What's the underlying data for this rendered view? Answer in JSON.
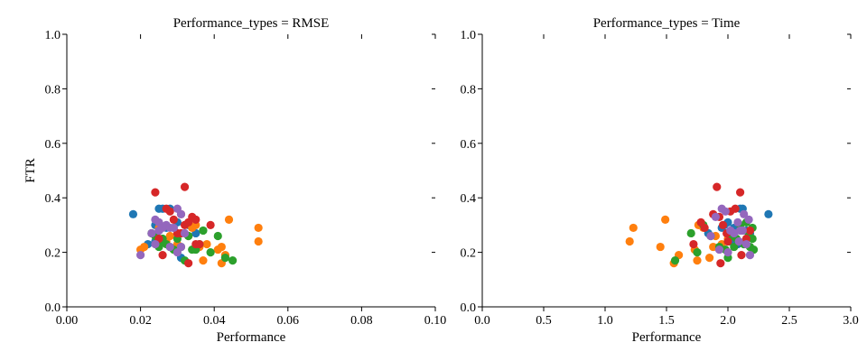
{
  "chart_data": [
    {
      "type": "scatter",
      "title": "Performance_types = RMSE",
      "xlabel": "Performance",
      "ylabel": "FTR",
      "xlim": [
        0.0,
        0.1
      ],
      "ylim": [
        0.0,
        1.0
      ],
      "xticks": [
        "0.00",
        "0.02",
        "0.04",
        "0.06",
        "0.08",
        "0.10"
      ],
      "yticks": [
        "0.0",
        "0.2",
        "0.4",
        "0.6",
        "0.8",
        "1.0"
      ],
      "grid": false,
      "series": [
        {
          "color": "#1f77b4",
          "points": [
            [
              0.018,
              0.34
            ],
            [
              0.022,
              0.23
            ],
            [
              0.024,
              0.3
            ],
            [
              0.025,
              0.36
            ],
            [
              0.026,
              0.36
            ],
            [
              0.027,
              0.29
            ],
            [
              0.028,
              0.36
            ],
            [
              0.029,
              0.29
            ],
            [
              0.03,
              0.31
            ],
            [
              0.031,
              0.18
            ],
            [
              0.033,
              0.3
            ],
            [
              0.035,
              0.27
            ],
            [
              0.025,
              0.28
            ],
            [
              0.024,
              0.24
            ]
          ]
        },
        {
          "color": "#ff7f0e",
          "points": [
            [
              0.02,
              0.21
            ],
            [
              0.021,
              0.22
            ],
            [
              0.025,
              0.29
            ],
            [
              0.027,
              0.24
            ],
            [
              0.03,
              0.23
            ],
            [
              0.033,
              0.26
            ],
            [
              0.034,
              0.29
            ],
            [
              0.035,
              0.3
            ],
            [
              0.036,
              0.22
            ],
            [
              0.037,
              0.17
            ],
            [
              0.038,
              0.23
            ],
            [
              0.041,
              0.21
            ],
            [
              0.042,
              0.16
            ],
            [
              0.042,
              0.22
            ],
            [
              0.043,
              0.19
            ],
            [
              0.044,
              0.32
            ],
            [
              0.052,
              0.29
            ],
            [
              0.052,
              0.24
            ],
            [
              0.028,
              0.26
            ]
          ]
        },
        {
          "color": "#2ca02c",
          "points": [
            [
              0.023,
              0.27
            ],
            [
              0.024,
              0.26
            ],
            [
              0.025,
              0.22
            ],
            [
              0.026,
              0.25
            ],
            [
              0.027,
              0.23
            ],
            [
              0.028,
              0.22
            ],
            [
              0.029,
              0.21
            ],
            [
              0.03,
              0.25
            ],
            [
              0.031,
              0.22
            ],
            [
              0.032,
              0.17
            ],
            [
              0.033,
              0.26
            ],
            [
              0.034,
              0.21
            ],
            [
              0.035,
              0.21
            ],
            [
              0.036,
              0.23
            ],
            [
              0.037,
              0.28
            ],
            [
              0.039,
              0.2
            ],
            [
              0.041,
              0.26
            ],
            [
              0.043,
              0.18
            ],
            [
              0.045,
              0.17
            ],
            [
              0.026,
              0.24
            ]
          ]
        },
        {
          "color": "#d62728",
          "points": [
            [
              0.024,
              0.42
            ],
            [
              0.025,
              0.25
            ],
            [
              0.026,
              0.19
            ],
            [
              0.027,
              0.36
            ],
            [
              0.028,
              0.35
            ],
            [
              0.029,
              0.32
            ],
            [
              0.03,
              0.27
            ],
            [
              0.031,
              0.34
            ],
            [
              0.032,
              0.44
            ],
            [
              0.032,
              0.3
            ],
            [
              0.033,
              0.31
            ],
            [
              0.033,
              0.16
            ],
            [
              0.034,
              0.33
            ],
            [
              0.035,
              0.23
            ],
            [
              0.035,
              0.32
            ],
            [
              0.036,
              0.23
            ],
            [
              0.039,
              0.3
            ],
            [
              0.031,
              0.27
            ]
          ]
        },
        {
          "color": "#9467bd",
          "points": [
            [
              0.02,
              0.19
            ],
            [
              0.023,
              0.27
            ],
            [
              0.024,
              0.32
            ],
            [
              0.024,
              0.23
            ],
            [
              0.025,
              0.31
            ],
            [
              0.026,
              0.29
            ],
            [
              0.027,
              0.3
            ],
            [
              0.028,
              0.29
            ],
            [
              0.028,
              0.22
            ],
            [
              0.029,
              0.29
            ],
            [
              0.03,
              0.2
            ],
            [
              0.03,
              0.36
            ],
            [
              0.031,
              0.34
            ],
            [
              0.031,
              0.22
            ],
            [
              0.032,
              0.27
            ],
            [
              0.025,
              0.28
            ]
          ]
        }
      ]
    },
    {
      "type": "scatter",
      "title": "Performance_types = Time",
      "xlabel": "Performance",
      "ylabel": "",
      "xlim": [
        0.0,
        3.0
      ],
      "ylim": [
        0.0,
        1.0
      ],
      "xticks": [
        "0.0",
        "0.5",
        "1.0",
        "1.5",
        "2.0",
        "2.5",
        "3.0"
      ],
      "yticks": [
        "0.0",
        "0.2",
        "0.4",
        "0.6",
        "0.8",
        "1.0"
      ],
      "grid": false,
      "series": [
        {
          "color": "#1f77b4",
          "points": [
            [
              2.33,
              0.34
            ],
            [
              1.84,
              0.27
            ],
            [
              2.12,
              0.36
            ],
            [
              2.1,
              0.36
            ],
            [
              2.05,
              0.29
            ],
            [
              2.0,
              0.31
            ],
            [
              1.97,
              0.3
            ],
            [
              2.15,
              0.28
            ],
            [
              2.08,
              0.23
            ],
            [
              1.95,
              0.29
            ],
            [
              2.02,
              0.24
            ],
            [
              2.18,
              0.27
            ]
          ]
        },
        {
          "color": "#ff7f0e",
          "points": [
            [
              1.2,
              0.24
            ],
            [
              1.23,
              0.29
            ],
            [
              1.45,
              0.22
            ],
            [
              1.49,
              0.32
            ],
            [
              1.56,
              0.16
            ],
            [
              1.6,
              0.19
            ],
            [
              1.73,
              0.21
            ],
            [
              1.75,
              0.17
            ],
            [
              1.76,
              0.3
            ],
            [
              1.8,
              0.29
            ],
            [
              1.85,
              0.18
            ],
            [
              1.88,
              0.22
            ],
            [
              1.9,
              0.26
            ],
            [
              1.95,
              0.23
            ],
            [
              2.0,
              0.25
            ],
            [
              2.05,
              0.26
            ]
          ]
        },
        {
          "color": "#2ca02c",
          "points": [
            [
              1.57,
              0.17
            ],
            [
              1.7,
              0.27
            ],
            [
              1.75,
              0.2
            ],
            [
              1.8,
              0.3
            ],
            [
              1.86,
              0.26
            ],
            [
              1.93,
              0.22
            ],
            [
              1.98,
              0.21
            ],
            [
              2.0,
              0.18
            ],
            [
              2.03,
              0.26
            ],
            [
              2.07,
              0.25
            ],
            [
              2.1,
              0.3
            ],
            [
              2.13,
              0.23
            ],
            [
              2.15,
              0.31
            ],
            [
              2.17,
              0.27
            ],
            [
              2.18,
              0.22
            ],
            [
              2.2,
              0.25
            ],
            [
              2.21,
              0.21
            ],
            [
              2.2,
              0.29
            ],
            [
              2.05,
              0.22
            ]
          ]
        },
        {
          "color": "#d62728",
          "points": [
            [
              1.72,
              0.23
            ],
            [
              1.78,
              0.31
            ],
            [
              1.81,
              0.29
            ],
            [
              1.88,
              0.34
            ],
            [
              1.91,
              0.44
            ],
            [
              1.94,
              0.16
            ],
            [
              1.96,
              0.3
            ],
            [
              1.99,
              0.27
            ],
            [
              2.02,
              0.35
            ],
            [
              2.06,
              0.36
            ],
            [
              2.1,
              0.42
            ],
            [
              2.11,
              0.19
            ],
            [
              2.15,
              0.25
            ],
            [
              2.18,
              0.28
            ],
            [
              2.0,
              0.24
            ],
            [
              1.93,
              0.33
            ]
          ]
        },
        {
          "color": "#9467bd",
          "points": [
            [
              1.86,
              0.26
            ],
            [
              1.9,
              0.33
            ],
            [
              1.93,
              0.21
            ],
            [
              1.95,
              0.36
            ],
            [
              1.98,
              0.35
            ],
            [
              2.0,
              0.2
            ],
            [
              2.02,
              0.28
            ],
            [
              2.05,
              0.27
            ],
            [
              2.08,
              0.31
            ],
            [
              2.1,
              0.28
            ],
            [
              2.12,
              0.28
            ],
            [
              2.15,
              0.23
            ],
            [
              2.17,
              0.32
            ],
            [
              2.18,
              0.19
            ],
            [
              2.13,
              0.34
            ],
            [
              2.09,
              0.24
            ]
          ]
        }
      ]
    }
  ]
}
